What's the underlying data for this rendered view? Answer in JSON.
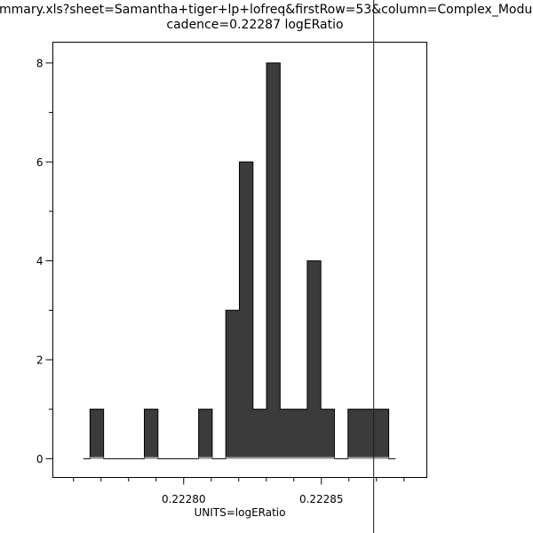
{
  "chart_data": {
    "type": "bar",
    "subtype": "histogram",
    "title_line1": "mmary.xls?sheet=Samantha+tiger+lp+lofreq&firstRow=53&column=Complex_Modulus&depende",
    "title_line2": "cadence=0.22287 logERatio",
    "xlabel": "UNITS=logERatio",
    "ylabel": "",
    "xlim": [
      0.2227525,
      0.2228883
    ],
    "ylim": [
      -0.38,
      8.42
    ],
    "grid": false,
    "legend": false,
    "bins": {
      "start": 0.222766,
      "width": 4.93e-06,
      "counts": [
        1,
        0,
        0,
        0,
        1,
        0,
        0,
        0,
        1,
        0,
        3,
        6,
        1,
        8,
        1,
        1,
        4,
        1,
        0,
        1,
        1,
        1
      ]
    },
    "total_count": 31,
    "baseline_extension_bins": 0.5,
    "x_ticks": {
      "major": [
        {
          "value": 0.2228,
          "label": "0.22280"
        },
        {
          "value": 0.22285,
          "label": "0.22285"
        }
      ],
      "minor_values": [
        0.22276,
        0.22277,
        0.22278,
        0.22279,
        0.22281,
        0.22282,
        0.22283,
        0.22284,
        0.22286,
        0.22287,
        0.22288
      ]
    },
    "y_ticks": {
      "major": [
        {
          "value": 0,
          "label": "0"
        },
        {
          "value": 2,
          "label": "2"
        },
        {
          "value": 4,
          "label": "4"
        },
        {
          "value": 6,
          "label": "6"
        },
        {
          "value": 8,
          "label": "8"
        }
      ],
      "minor_values": [
        1,
        3,
        5,
        7
      ]
    },
    "vline": {
      "x": 0.222869,
      "meaning": "cadence marker",
      "spans_full_image": true
    },
    "colors": {
      "background": "#ffffff",
      "bar_fill": "#3b3b3b",
      "bar_outline": "#000000",
      "axis": "#000000",
      "vline": "#1a1a1a",
      "baseline_under_bars": "#9a9a9a",
      "text": "#000000"
    }
  }
}
